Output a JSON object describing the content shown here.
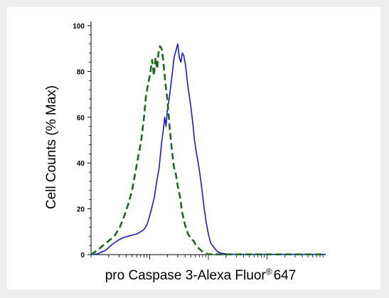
{
  "chart_data": {
    "type": "line",
    "ylabel": "Cell Counts (% Max)",
    "xlabel": "pro Caspase 3-Alexa Fluor",
    "xlabel_superscript": "®",
    "xlabel_suffix": "647",
    "x_scale": "log",
    "xlim": [
      1,
      10000
    ],
    "ylim": [
      0,
      100
    ],
    "yticks": [
      0,
      20,
      40,
      60,
      80,
      100
    ],
    "grid": false,
    "series": [
      {
        "style": "solid",
        "color": "#1a1ad6",
        "x": [
          1,
          1.3,
          1.8,
          2.3,
          3,
          3.6,
          4.3,
          5,
          6,
          7,
          8,
          9,
          10,
          11,
          12,
          13,
          14.5,
          16,
          17,
          18,
          19,
          20,
          21.5,
          23,
          24.5,
          26,
          28,
          30,
          32,
          34,
          36,
          38,
          40,
          42,
          44,
          47,
          50,
          54,
          58,
          62,
          67,
          72,
          78,
          85,
          92,
          100,
          110,
          122,
          135,
          150,
          170,
          195,
          230,
          280,
          340,
          420,
          600,
          1000,
          3000,
          10000
        ],
        "y": [
          0,
          0.3,
          2,
          4.5,
          6.5,
          7.5,
          8,
          8.5,
          9,
          10,
          11,
          13,
          17,
          21,
          25,
          31,
          38,
          49,
          54,
          60,
          56,
          63,
          68,
          74,
          80,
          86,
          89,
          92,
          86,
          84,
          88,
          87,
          84,
          80,
          75,
          70,
          65,
          58,
          50,
          45,
          40,
          35,
          28,
          20,
          14,
          9,
          5,
          3.5,
          2,
          1,
          0.6,
          0.3,
          0.2,
          0.1,
          0.1,
          0.1,
          0.1,
          0.1,
          0.1,
          0.1
        ]
      },
      {
        "style": "dashed",
        "color": "#1b6b1b",
        "x": [
          1,
          1.3,
          1.6,
          2,
          2.5,
          3.1,
          3.7,
          4.3,
          5,
          5.7,
          6.5,
          7.2,
          8,
          8.7,
          9.5,
          10.3,
          11,
          11.8,
          12.6,
          13.4,
          14.2,
          15,
          16,
          17,
          18.5,
          20,
          22,
          24,
          26,
          28,
          30,
          33,
          36,
          40,
          45,
          50,
          56,
          62,
          70,
          78,
          87,
          100,
          115,
          135,
          160,
          200,
          300,
          600,
          2000,
          10000
        ],
        "y": [
          0,
          2,
          4,
          6,
          8,
          12,
          17,
          22,
          28,
          36,
          44,
          50,
          60,
          70,
          75,
          80,
          85,
          78,
          86,
          81,
          89,
          91,
          90,
          85,
          75,
          68,
          55,
          45,
          38,
          35,
          30,
          25,
          18,
          13,
          9,
          7,
          6,
          4,
          2.5,
          1.5,
          0.6,
          0.2,
          0.1,
          0.1,
          0.1,
          0.1,
          0.1,
          0.1,
          0.1,
          0.1
        ]
      }
    ]
  }
}
